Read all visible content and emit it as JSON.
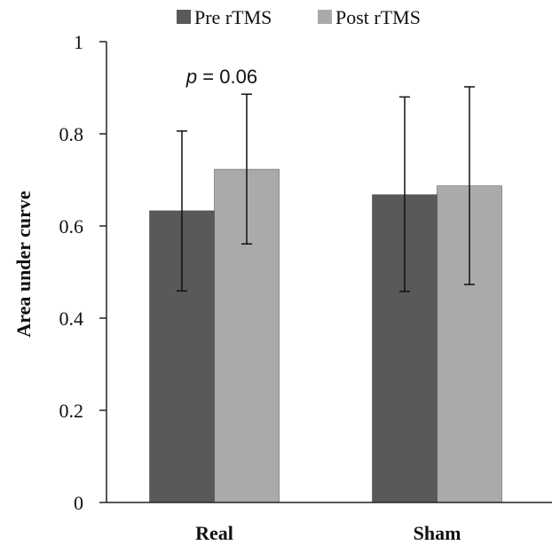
{
  "chart_data": {
    "type": "bar",
    "categories": [
      "Real",
      "Sham"
    ],
    "series": [
      {
        "name": "Pre rTMS",
        "color": "#595959",
        "values": [
          0.633,
          0.668
        ],
        "error_low": [
          0.459,
          0.458
        ],
        "error_high": [
          0.806,
          0.88
        ]
      },
      {
        "name": "Post rTMS",
        "color": "#aaaaaa",
        "values": [
          0.723,
          0.687
        ],
        "error_low": [
          0.561,
          0.473
        ],
        "error_high": [
          0.886,
          0.902
        ]
      }
    ],
    "ylabel": "Area under curve",
    "xlabel": "",
    "ylim": [
      0,
      1
    ],
    "yticks": [
      "0",
      "0.2",
      "0.4",
      "0.6",
      "0.8",
      "1"
    ],
    "legend_position": "top",
    "annotation": {
      "prefix": "p",
      "text": " = 0.06",
      "category": "Real"
    },
    "grid": false
  }
}
